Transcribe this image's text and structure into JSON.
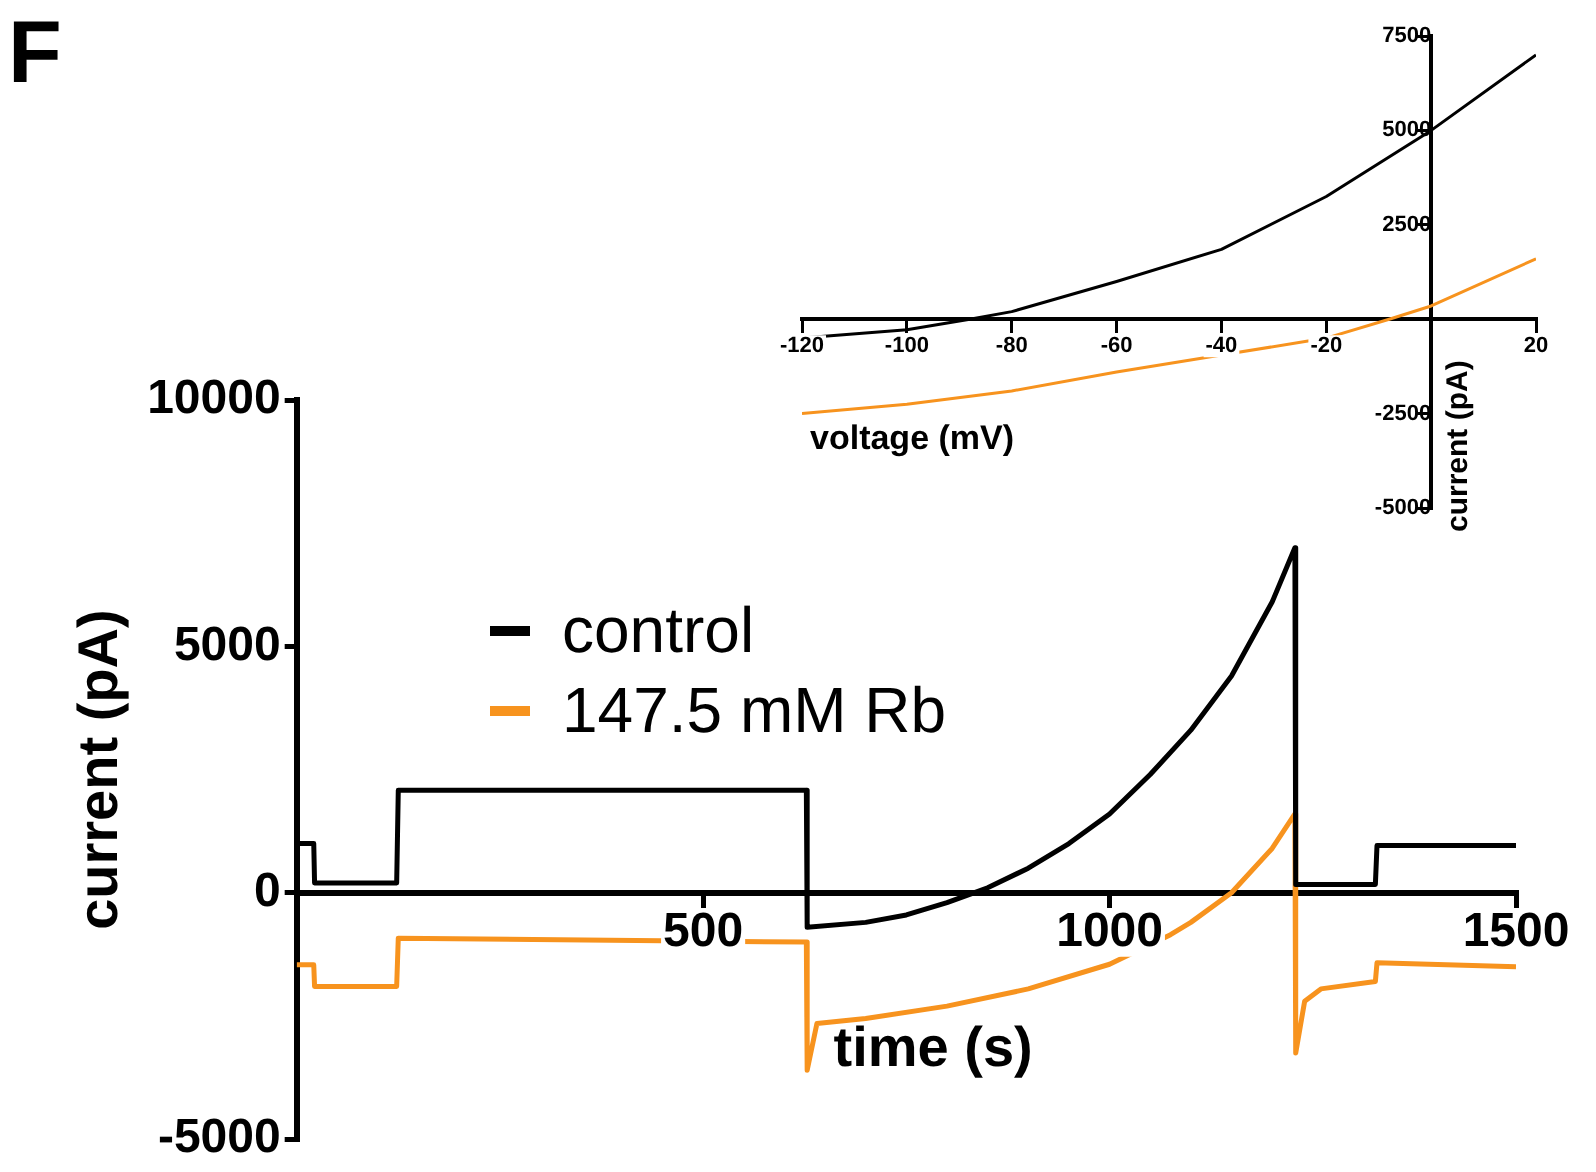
{
  "chart_data": [
    {
      "type": "line",
      "xlabel": "time (s)",
      "ylabel": "current (pA)",
      "annotations": [
        "F"
      ],
      "xlim": [
        0,
        1500
      ],
      "xticks": [
        500,
        1000,
        1500
      ],
      "ylim": [
        -5000,
        10000
      ],
      "yticks": [
        -5000,
        0,
        5000,
        10000
      ],
      "grid": false,
      "legend": "left",
      "series": [
        {
          "name": "control",
          "color": "#000000",
          "x": [
            0,
            21,
            22,
            123,
            125,
            627,
            628,
            700,
            750,
            800,
            850,
            900,
            950,
            1000,
            1050,
            1100,
            1150,
            1200,
            1228,
            1229,
            1327,
            1329,
            1500
          ],
          "values": [
            1000,
            1000,
            200,
            200,
            2080,
            2080,
            -700,
            -600,
            -450,
            -200,
            100,
            500,
            1000,
            1600,
            2400,
            3300,
            4400,
            5900,
            7000,
            170,
            170,
            960,
            960
          ]
        },
        {
          "name": "147.5 mM Rb",
          "color": "#f7931e",
          "x": [
            0,
            21,
            22,
            123,
            125,
            627,
            628,
            640,
            700,
            800,
            900,
            1000,
            1075,
            1100,
            1150,
            1200,
            1228,
            1229,
            1240,
            1260,
            1327,
            1329,
            1500
          ],
          "values": [
            -1460,
            -1460,
            -1900,
            -1900,
            -920,
            -1000,
            -3600,
            -2650,
            -2550,
            -2300,
            -1950,
            -1450,
            -850,
            -600,
            0,
            900,
            1600,
            -3250,
            -2200,
            -1950,
            -1800,
            -1420,
            -1500
          ]
        }
      ]
    },
    {
      "type": "line",
      "xlabel": "voltage (mV)",
      "ylabel": "current (pA)",
      "xlim": [
        -120,
        20
      ],
      "xticks": [
        -120,
        -100,
        -80,
        -60,
        -40,
        -20,
        20
      ],
      "ylim": [
        -5000,
        7500
      ],
      "yticks": [
        -5000,
        -2500,
        2500,
        5000,
        7500
      ],
      "grid": false,
      "series": [
        {
          "color": "#000000",
          "x": [
            -120,
            -100,
            -88,
            -80,
            -60,
            -40,
            -20,
            0,
            20
          ],
          "values": [
            -500,
            -280,
            0,
            200,
            1000,
            1850,
            3250,
            5000,
            7000
          ]
        },
        {
          "color": "#f7931e",
          "x": [
            -120,
            -100,
            -80,
            -60,
            -40,
            -20,
            -8,
            0,
            20
          ],
          "values": [
            -2500,
            -2250,
            -1900,
            -1400,
            -950,
            -500,
            0,
            350,
            1600
          ]
        }
      ]
    }
  ]
}
